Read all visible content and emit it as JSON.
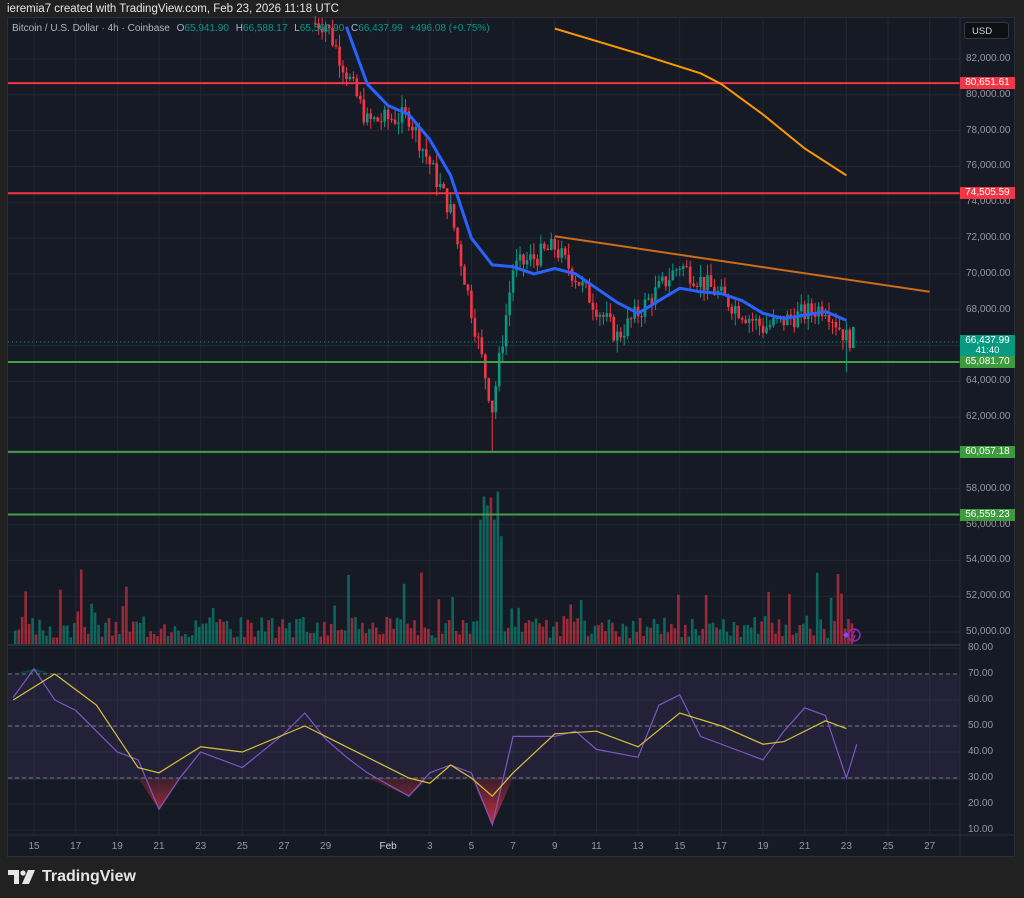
{
  "header": {
    "credit": "ieremia7 created with TradingView.com, Feb 23, 2026 11:18 UTC"
  },
  "legend": {
    "symbol": "Bitcoin / U.S. Dollar · 4h · Coinbase",
    "o_label": "O",
    "o_value": "65,941.90",
    "h_label": "H",
    "h_value": "66,588.17",
    "l_label": "L",
    "l_value": "65,560.90",
    "c_label": "C",
    "c_value": "66,437.99",
    "change": "+496.08 (+0.75%)"
  },
  "currency_button": "USD",
  "footer": {
    "brand": "TradingView"
  },
  "colors": {
    "up": "#089981",
    "down": "#f23645",
    "ema_fast": "#2962ff",
    "ema_slow": "#ff9800",
    "trendline": "#cc6d1a",
    "resistance": "#f23645",
    "support": "#43a047",
    "rsi": "#7e57c2",
    "rsi_ma": "#d6c23a",
    "background": "#161a25"
  },
  "chart_data": [
    {
      "type": "candlestick",
      "title": "Bitcoin / U.S. Dollar · 4h · Coinbase",
      "ylabel": "USD",
      "ylim": [
        48800,
        83500
      ],
      "grid": true,
      "y_ticks": [
        "82,000.00",
        "80,000.00",
        "78,000.00",
        "76,000.00",
        "74,000.00",
        "72,000.00",
        "70,000.00",
        "68,000.00",
        "64,000.00",
        "62,000.00",
        "58,000.00",
        "56,000.00",
        "54,000.00",
        "52,000.00",
        "50,000.00"
      ],
      "x_ticks": [
        "15",
        "17",
        "19",
        "21",
        "23",
        "25",
        "27",
        "29",
        "Feb",
        "3",
        "5",
        "7",
        "9",
        "11",
        "13",
        "15",
        "17",
        "19",
        "21",
        "23",
        "25",
        "27"
      ],
      "last_price": "66,437.99",
      "countdown": "41:40",
      "horizontal_levels": [
        {
          "label": "80,651.61",
          "value": 80651.61,
          "kind": "resistance"
        },
        {
          "label": "74,505.59",
          "value": 74505.59,
          "kind": "resistance"
        },
        {
          "label": "65,081.70",
          "value": 65081.7,
          "kind": "support"
        },
        {
          "label": "60,057.18",
          "value": 60057.18,
          "kind": "support"
        },
        {
          "label": "56,559.23",
          "value": 56559.23,
          "kind": "support"
        }
      ],
      "trendline": {
        "from": [
          "Feb 9",
          72100
        ],
        "to": [
          "Feb 27",
          69000
        ]
      },
      "key_points": [
        {
          "date": "Jan 29",
          "price": 84000
        },
        {
          "date": "Jan 31",
          "price": 78500
        },
        {
          "date": "Feb 2",
          "price": 78800
        },
        {
          "date": "Feb 4",
          "price": 73500
        },
        {
          "date": "Feb 6",
          "price": 62500,
          "low": 60100
        },
        {
          "date": "Feb 7",
          "price": 70300
        },
        {
          "date": "Feb 9",
          "price": 71500
        },
        {
          "date": "Feb 12",
          "price": 66500
        },
        {
          "date": "Feb 15",
          "price": 70500
        },
        {
          "date": "Feb 19",
          "price": 67000
        },
        {
          "date": "Feb 22",
          "price": 68200
        },
        {
          "date": "Feb 23",
          "price": 66437.99,
          "low": 64500
        }
      ],
      "series": [
        {
          "name": "EMA fast (blue)",
          "points": [
            [
              "Jan 30",
              83800
            ],
            [
              "Jan 31",
              80600
            ],
            [
              "Feb 1",
              79400
            ],
            [
              "Feb 2",
              78900
            ],
            [
              "Feb 3",
              77500
            ],
            [
              "Feb 4",
              75500
            ],
            [
              "Feb 5",
              72000
            ],
            [
              "Feb 6",
              70500
            ],
            [
              "Feb 7",
              70400
            ],
            [
              "Feb 8",
              70000
            ],
            [
              "Feb 9",
              70300
            ],
            [
              "Feb 10",
              70000
            ],
            [
              "Feb 11",
              69200
            ],
            [
              "Feb 12",
              68400
            ],
            [
              "Feb 13",
              67800
            ],
            [
              "Feb 14",
              68500
            ],
            [
              "Feb 15",
              69200
            ],
            [
              "Feb 16",
              69000
            ],
            [
              "Feb 17",
              68900
            ],
            [
              "Feb 18",
              68500
            ],
            [
              "Feb 19",
              67800
            ],
            [
              "Feb 20",
              67500
            ],
            [
              "Feb 21",
              67700
            ],
            [
              "Feb 22",
              67900
            ],
            [
              "Feb 23",
              67400
            ]
          ]
        },
        {
          "name": "EMA slow (orange)",
          "points": [
            [
              "Feb 9",
              83700
            ],
            [
              "Feb 13",
              82300
            ],
            [
              "Feb 16",
              81200
            ],
            [
              "Feb 17",
              80600
            ],
            [
              "Feb 19",
              78900
            ],
            [
              "Feb 21",
              77000
            ],
            [
              "Feb 23",
              75500
            ]
          ]
        }
      ]
    },
    {
      "type": "bar",
      "title": "Volume",
      "note": "Colored by candle direction; spike around Feb 5-6"
    },
    {
      "type": "line",
      "title": "RSI",
      "ylim": [
        5,
        82
      ],
      "y_ticks": [
        "80.00",
        "70.00",
        "60.00",
        "50.00",
        "40.00",
        "30.00",
        "20.00",
        "10.00"
      ],
      "bands": {
        "upper": 70,
        "middle": 50,
        "lower": 30
      },
      "series": [
        {
          "name": "RSI",
          "points": [
            [
              "Jan 14",
              61
            ],
            [
              "Jan 15",
              72
            ],
            [
              "Jan 16",
              60
            ],
            [
              "Jan 17",
              56
            ],
            [
              "Jan 19",
              40
            ],
            [
              "Jan 20",
              37
            ],
            [
              "Jan 21",
              18
            ],
            [
              "Jan 22",
              30
            ],
            [
              "Jan 23",
              40
            ],
            [
              "Jan 25",
              34
            ],
            [
              "Jan 27",
              47
            ],
            [
              "Jan 28",
              55
            ],
            [
              "Jan 29",
              45
            ],
            [
              "Jan 30",
              38
            ],
            [
              "Jan 31",
              32
            ],
            [
              "Feb 2",
              23
            ],
            [
              "Feb 3",
              32
            ],
            [
              "Feb 4",
              35
            ],
            [
              "Feb 5",
              32
            ],
            [
              "Feb 6",
              12
            ],
            [
              "Feb 7",
              46
            ],
            [
              "Feb 9",
              46
            ],
            [
              "Feb 10",
              48
            ],
            [
              "Feb 11",
              41
            ],
            [
              "Feb 13",
              38
            ],
            [
              "Feb 14",
              58
            ],
            [
              "Feb 15",
              62
            ],
            [
              "Feb 16",
              46
            ],
            [
              "Feb 18",
              40
            ],
            [
              "Feb 19",
              37
            ],
            [
              "Feb 20",
              48
            ],
            [
              "Feb 21",
              57
            ],
            [
              "Feb 22",
              54
            ],
            [
              "Feb 23",
              30
            ],
            [
              "Feb 23.5",
              43
            ]
          ]
        },
        {
          "name": "RSI MA",
          "points": [
            [
              "Jan 14",
              60
            ],
            [
              "Jan 16",
              70
            ],
            [
              "Jan 18",
              58
            ],
            [
              "Jan 20",
              34
            ],
            [
              "Jan 21",
              32
            ],
            [
              "Jan 23",
              42
            ],
            [
              "Jan 25",
              40
            ],
            [
              "Jan 28",
              50
            ],
            [
              "Jan 30",
              42
            ],
            [
              "Feb 2",
              30
            ],
            [
              "Feb 3",
              28
            ],
            [
              "Feb 4",
              35
            ],
            [
              "Feb 5",
              30
            ],
            [
              "Feb 6",
              23
            ],
            [
              "Feb 7",
              32
            ],
            [
              "Feb 9",
              47
            ],
            [
              "Feb 11",
              48
            ],
            [
              "Feb 13",
              42
            ],
            [
              "Feb 15",
              55
            ],
            [
              "Feb 17",
              50
            ],
            [
              "Feb 19",
              43
            ],
            [
              "Feb 20",
              44
            ],
            [
              "Feb 22",
              52
            ],
            [
              "Feb 23",
              49
            ]
          ]
        }
      ]
    }
  ]
}
